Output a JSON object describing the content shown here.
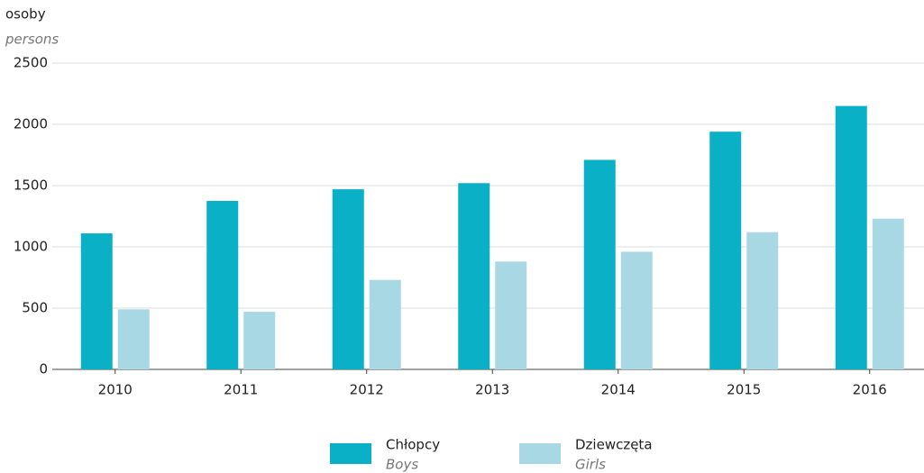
{
  "chart_data": {
    "type": "bar",
    "y_label": "osoby",
    "y_label_en": "persons",
    "categories": [
      "2010",
      "2011",
      "2012",
      "2013",
      "2014",
      "2015",
      "2016"
    ],
    "series": [
      {
        "name": "Chłopcy",
        "name_en": "Boys",
        "color": "#0ab1c6",
        "values": [
          1110,
          1375,
          1470,
          1520,
          1710,
          1940,
          2150
        ]
      },
      {
        "name": "Dziewczęta",
        "name_en": "Girls",
        "color": "#a8d8e3",
        "values": [
          490,
          470,
          730,
          880,
          960,
          1120,
          1230
        ]
      }
    ],
    "ylim": [
      0,
      2500
    ],
    "yticks": [
      0,
      500,
      1000,
      1500,
      2000,
      2500
    ],
    "grid": true,
    "legend": "bottom"
  }
}
